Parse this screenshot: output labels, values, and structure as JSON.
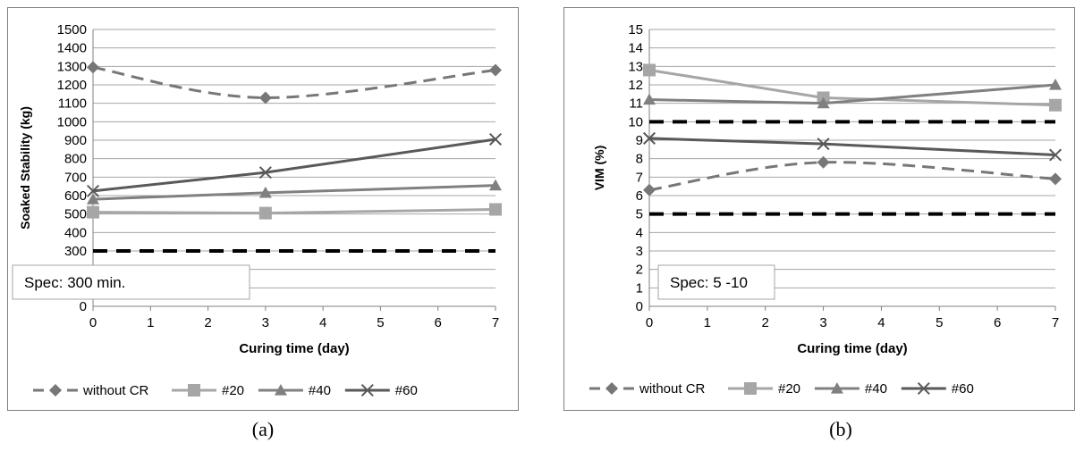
{
  "charts": [
    {
      "caption": "(a)",
      "chart_data": {
        "type": "line",
        "xlabel": "Curing time (day)",
        "ylabel": "Soaked Stability (kg)",
        "xlim": [
          0,
          7
        ],
        "ylim": [
          0,
          1500
        ],
        "x_ticks": [
          "0",
          "1",
          "2",
          "3",
          "4",
          "5",
          "6",
          "7"
        ],
        "y_ticks": [
          "0",
          "100",
          "200",
          "300",
          "400",
          "500",
          "600",
          "700",
          "800",
          "900",
          "1000",
          "1100",
          "1200",
          "1300",
          "1400",
          "1500"
        ],
        "y_step": 100,
        "grid": true,
        "legend_position": "bottom",
        "x": [
          0,
          3,
          7
        ],
        "series": [
          {
            "name": "without CR",
            "values": [
              1295,
              1130,
              1280
            ],
            "color": "#777777",
            "dash": "dashed",
            "marker": "diamond"
          },
          {
            "name": "#20",
            "values": [
              510,
              505,
              525
            ],
            "color": "#a6a6a6",
            "dash": "solid",
            "marker": "square"
          },
          {
            "name": "#40",
            "values": [
              580,
              615,
              655
            ],
            "color": "#808080",
            "dash": "solid",
            "marker": "triangle"
          },
          {
            "name": "#60",
            "values": [
              625,
              725,
              905
            ],
            "color": "#595959",
            "dash": "solid",
            "marker": "x"
          }
        ],
        "spec_lines": [
          300
        ],
        "annotation": "Spec: 300 min."
      }
    },
    {
      "caption": "(b)",
      "chart_data": {
        "type": "line",
        "xlabel": "Curing time (day)",
        "ylabel": "VIM (%)",
        "xlim": [
          0,
          7
        ],
        "ylim": [
          0,
          15
        ],
        "x_ticks": [
          "0",
          "1",
          "2",
          "3",
          "4",
          "5",
          "6",
          "7"
        ],
        "y_ticks": [
          "0",
          "1",
          "2",
          "3",
          "4",
          "5",
          "6",
          "7",
          "8",
          "9",
          "10",
          "11",
          "12",
          "13",
          "14",
          "15"
        ],
        "y_step": 1,
        "grid": true,
        "legend_position": "bottom",
        "x": [
          0,
          3,
          7
        ],
        "series": [
          {
            "name": "without CR",
            "values": [
              6.3,
              7.8,
              6.9
            ],
            "color": "#777777",
            "dash": "dashed",
            "marker": "diamond"
          },
          {
            "name": "#20",
            "values": [
              12.8,
              11.3,
              10.9
            ],
            "color": "#a6a6a6",
            "dash": "solid",
            "marker": "square"
          },
          {
            "name": "#40",
            "values": [
              11.2,
              11.0,
              12.0
            ],
            "color": "#808080",
            "dash": "solid",
            "marker": "triangle"
          },
          {
            "name": "#60",
            "values": [
              9.1,
              8.8,
              8.2
            ],
            "color": "#595959",
            "dash": "solid",
            "marker": "x"
          }
        ],
        "spec_lines": [
          5,
          10
        ],
        "annotation": "Spec: 5 -10"
      }
    }
  ]
}
